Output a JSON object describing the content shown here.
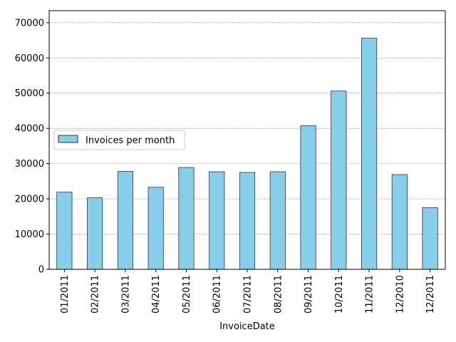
{
  "chart_data": {
    "type": "bar",
    "xlabel": "InvoiceDate",
    "ylabel": "",
    "categories": [
      "01/2011",
      "02/2011",
      "03/2011",
      "04/2011",
      "05/2011",
      "06/2011",
      "07/2011",
      "08/2011",
      "09/2011",
      "10/2011",
      "11/2011",
      "12/2010",
      "12/2011"
    ],
    "series": [
      {
        "name": "Invoices per month",
        "values": [
          21900,
          20300,
          27800,
          23300,
          28900,
          27700,
          27500,
          27700,
          40800,
          50600,
          65600,
          26900,
          17500
        ]
      }
    ],
    "ylim": [
      0,
      73400
    ],
    "yticks": [
      0,
      10000,
      20000,
      30000,
      40000,
      50000,
      60000,
      70000
    ],
    "grid": "horizontal-dashed",
    "legend": "center-left",
    "colors": {
      "bar_fill": "#87ceeb",
      "bar_edge": "#333333",
      "grid": "#808080"
    }
  }
}
